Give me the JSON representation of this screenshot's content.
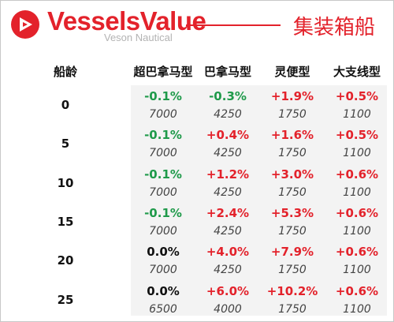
{
  "header": {
    "brand": "VesselsValue",
    "subbrand": "Veson Nautical",
    "title": "集装箱船",
    "accent_color": "#e3222b",
    "logo_icon": "triangle-play-icon"
  },
  "table": {
    "age_header": "船龄",
    "columns": [
      "超巴拿马型",
      "巴拿马型",
      "灵便型",
      "大支线型"
    ],
    "rows": [
      {
        "age": "0",
        "changes": [
          "-0.1%",
          "-0.3%",
          "+1.9%",
          "+0.5%"
        ],
        "values": [
          "7000",
          "4250",
          "1750",
          "1100"
        ]
      },
      {
        "age": "5",
        "changes": [
          "-0.1%",
          "+0.4%",
          "+1.6%",
          "+0.5%"
        ],
        "values": [
          "7000",
          "4250",
          "1750",
          "1100"
        ]
      },
      {
        "age": "10",
        "changes": [
          "-0.1%",
          "+1.2%",
          "+3.0%",
          "+0.6%"
        ],
        "values": [
          "7000",
          "4250",
          "1750",
          "1100"
        ]
      },
      {
        "age": "15",
        "changes": [
          "-0.1%",
          "+2.4%",
          "+5.3%",
          "+0.6%"
        ],
        "values": [
          "7000",
          "4250",
          "1750",
          "1100"
        ]
      },
      {
        "age": "20",
        "changes": [
          "0.0%",
          "+4.0%",
          "+7.9%",
          "+0.6%"
        ],
        "values": [
          "7000",
          "4250",
          "1750",
          "1100"
        ]
      },
      {
        "age": "25",
        "changes": [
          "0.0%",
          "+6.0%",
          "+10.2%",
          "+0.6%"
        ],
        "values": [
          "6500",
          "4000",
          "1750",
          "1100"
        ]
      }
    ],
    "colors": {
      "positive": "#e3222b",
      "negative": "#1f9a4a",
      "neutral": "#111111"
    }
  }
}
